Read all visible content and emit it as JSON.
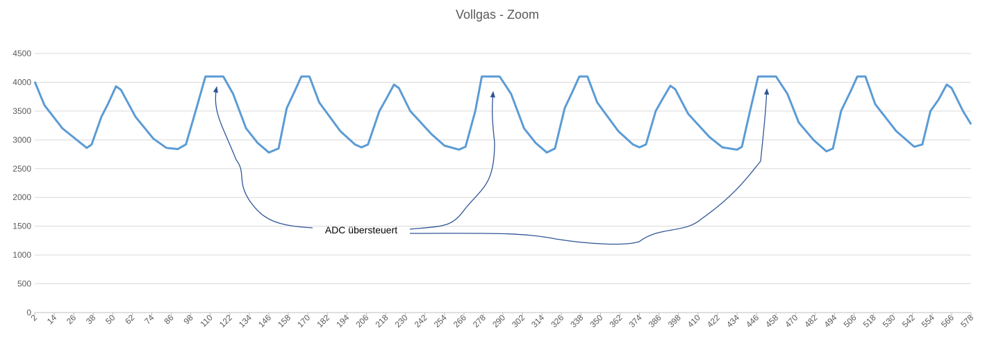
{
  "chart_data": {
    "type": "line",
    "title": "Vollgas - Zoom",
    "annotations": [
      "ADC übersteuert"
    ],
    "xlim": [
      2,
      578
    ],
    "xticks": [
      2,
      14,
      26,
      38,
      50,
      62,
      74,
      86,
      98,
      110,
      122,
      134,
      146,
      158,
      170,
      182,
      194,
      206,
      218,
      230,
      242,
      254,
      266,
      278,
      290,
      302,
      314,
      326,
      338,
      350,
      362,
      374,
      386,
      398,
      410,
      422,
      434,
      446,
      458,
      470,
      482,
      494,
      506,
      518,
      530,
      542,
      554,
      566,
      578
    ],
    "ylim": [
      0,
      4500
    ],
    "yticks": [
      0,
      500,
      1000,
      1500,
      2000,
      2500,
      3000,
      3500,
      4000,
      4500
    ],
    "grid": true,
    "series": [
      {
        "color": "#5b9bd5",
        "x": [
          2,
          8,
          19,
          34,
          37,
          43,
          47,
          52,
          55,
          64,
          75,
          83,
          90,
          95,
          102,
          107,
          118,
          124,
          132,
          139,
          146,
          152,
          157,
          162,
          166,
          171,
          177,
          190,
          199,
          203,
          207,
          214,
          218,
          223,
          226,
          233,
          246,
          254,
          263,
          267,
          273,
          277,
          288,
          295,
          303,
          310,
          317,
          322,
          328,
          333,
          337,
          342,
          348,
          361,
          370,
          374,
          378,
          384,
          388,
          393,
          396,
          404,
          417,
          425,
          434,
          437,
          442,
          447,
          458,
          465,
          472,
          481,
          489,
          493,
          498,
          504,
          508,
          513,
          519,
          532,
          543,
          548,
          553,
          558,
          563,
          566,
          573,
          578
        ],
        "values": [
          4010,
          3600,
          3200,
          2860,
          2920,
          3400,
          3620,
          3930,
          3870,
          3400,
          3020,
          2860,
          2840,
          2920,
          3600,
          4100,
          4100,
          3800,
          3200,
          2950,
          2780,
          2850,
          3550,
          3850,
          4100,
          4100,
          3650,
          3150,
          2920,
          2870,
          2920,
          3500,
          3700,
          3960,
          3900,
          3500,
          3100,
          2900,
          2830,
          2880,
          3500,
          4100,
          4100,
          3800,
          3200,
          2950,
          2780,
          2850,
          3550,
          3850,
          4100,
          4100,
          3650,
          3150,
          2920,
          2870,
          2920,
          3500,
          3700,
          3940,
          3880,
          3450,
          3050,
          2870,
          2830,
          2880,
          3500,
          4100,
          4100,
          3800,
          3300,
          3000,
          2800,
          2850,
          3500,
          3850,
          4100,
          4100,
          3620,
          3150,
          2880,
          2920,
          3500,
          3700,
          3960,
          3900,
          3500,
          3270
        ]
      }
    ]
  }
}
